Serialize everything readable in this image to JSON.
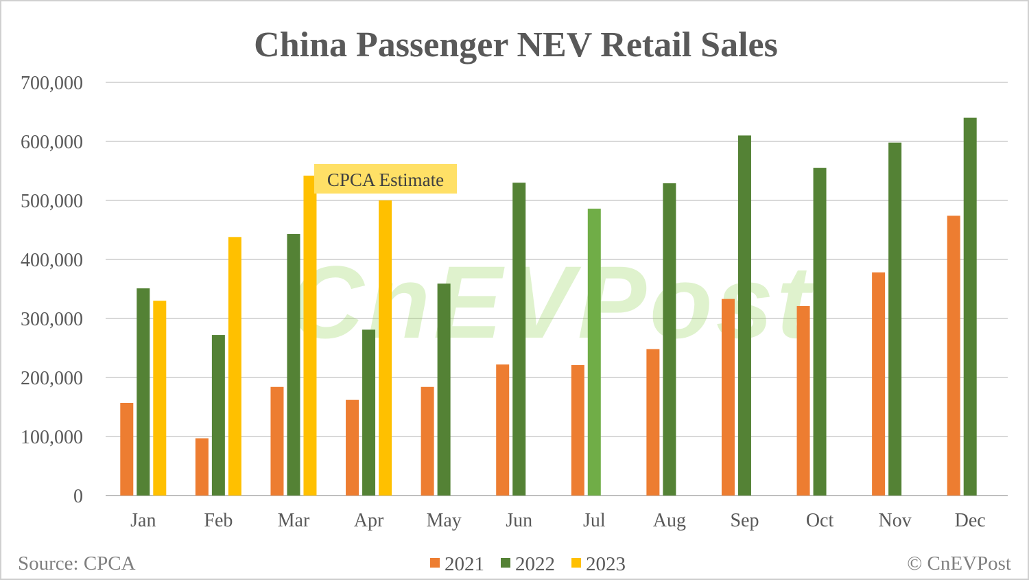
{
  "chart_data": {
    "type": "bar",
    "title": "China Passenger NEV Retail Sales",
    "categories": [
      "Jan",
      "Feb",
      "Mar",
      "Apr",
      "May",
      "Jun",
      "Jul",
      "Aug",
      "Sep",
      "Oct",
      "Nov",
      "Dec"
    ],
    "series": [
      {
        "name": "2021",
        "color": "#ED7D31",
        "values": [
          157000,
          97000,
          184000,
          162000,
          184000,
          222000,
          221000,
          248000,
          333000,
          321000,
          378000,
          474000
        ]
      },
      {
        "name": "2022",
        "color": "#548235",
        "values": [
          351000,
          272000,
          443000,
          281000,
          359000,
          530000,
          486000,
          529000,
          610000,
          555000,
          598000,
          640000
        ]
      },
      {
        "name": "2023",
        "color": "#FFC000",
        "values": [
          330000,
          438000,
          542000,
          500000,
          null,
          null,
          null,
          null,
          null,
          null,
          null,
          null
        ]
      }
    ],
    "highlight_color": "#70AD47",
    "ylim": [
      0,
      700000
    ],
    "yticks": [
      0,
      100000,
      200000,
      300000,
      400000,
      500000,
      600000,
      700000
    ],
    "ytick_labels": [
      "0",
      "100,000",
      "200,000",
      "300,000",
      "400,000",
      "500,000",
      "600,000",
      "700,000"
    ],
    "grid": true,
    "legend_position": "bottom",
    "annotation": {
      "text": "CPCA Estimate",
      "color": "#FFE066"
    },
    "source": "Source: CPCA",
    "credit": "© CnEVPost",
    "watermark": "CnEVPost"
  }
}
